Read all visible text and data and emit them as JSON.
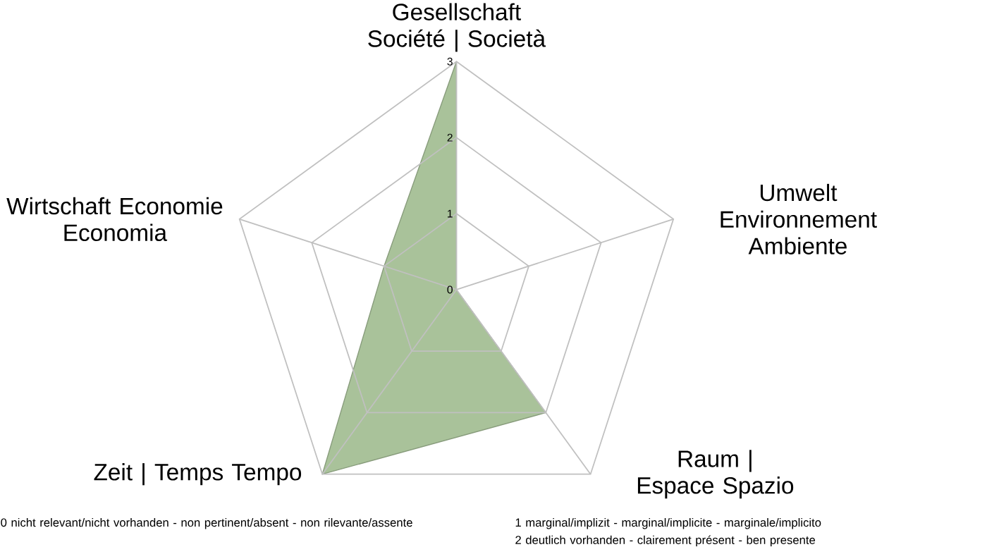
{
  "chart_data": {
    "type": "radar",
    "categories": [
      "Gesellschaft Société | Società",
      "Umwelt Environnement Ambiente",
      "Raum | Espace Spazio",
      "Zeit | Temps Tempo",
      "Wirtschaft Economie Economia"
    ],
    "series": [
      {
        "color": "#a9c29a",
        "values": [
          3,
          0,
          2,
          3,
          1
        ]
      }
    ],
    "ylim": [
      0,
      3
    ],
    "yticks": [
      0,
      1,
      2,
      3
    ],
    "grid": true,
    "annotations": [
      "0 nicht relevant/nicht  vorhanden  - non pertinent/absent - non rilevante/assente",
      "1 marginal/implizit - marginal/implicite - marginale/implicito",
      "2 deutlich vorhanden  - clairement présent - ben presente"
    ]
  }
}
